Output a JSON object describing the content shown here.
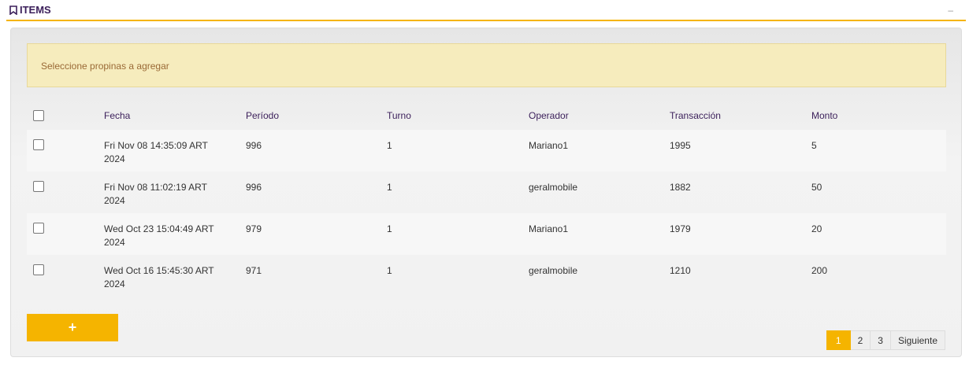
{
  "header": {
    "title": "ITEMS",
    "icon": "bookmark-icon",
    "minimize": "–"
  },
  "alert": "Seleccione propinas a agregar",
  "table": {
    "columns": [
      "Fecha",
      "Período",
      "Turno",
      "Operador",
      "Transacción",
      "Monto"
    ],
    "rows": [
      [
        "Fri Nov 08 14:35:09 ART 2024",
        "996",
        "1",
        "Mariano1",
        "1995",
        "5"
      ],
      [
        "Fri Nov 08 11:02:19 ART 2024",
        "996",
        "1",
        "geralmobile",
        "1882",
        "50"
      ],
      [
        "Wed Oct 23 15:04:49 ART 2024",
        "979",
        "1",
        "Mariano1",
        "1979",
        "20"
      ],
      [
        "Wed Oct 16 15:45:30 ART 2024",
        "971",
        "1",
        "geralmobile",
        "1210",
        "200"
      ]
    ]
  },
  "add_label": "+",
  "pager": {
    "pages": [
      "1",
      "2",
      "3"
    ],
    "active": "1",
    "next": "Siguiente"
  },
  "colors": {
    "accent": "#f5b400",
    "alert_bg": "#f6ecbd",
    "heading": "#3b1f5a"
  }
}
